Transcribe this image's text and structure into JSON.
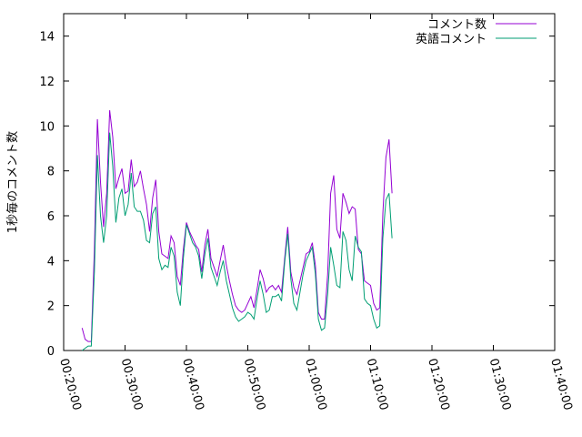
{
  "chart_data": {
    "type": "line",
    "title": "",
    "xlabel": "",
    "ylabel": "1秒毎のコメント数",
    "ylim": [
      0,
      15
    ],
    "yticks": [
      0,
      2,
      4,
      6,
      8,
      10,
      12,
      14
    ],
    "xlim": [
      1200,
      6000
    ],
    "xticks": [
      {
        "t": 1200,
        "label": "00:20:00"
      },
      {
        "t": 1800,
        "label": "00:30:00"
      },
      {
        "t": 2400,
        "label": "00:40:00"
      },
      {
        "t": 3000,
        "label": "00:50:00"
      },
      {
        "t": 3600,
        "label": "01:00:00"
      },
      {
        "t": 4200,
        "label": "01:10:00"
      },
      {
        "t": 4800,
        "label": "01:20:00"
      },
      {
        "t": 5400,
        "label": "01:30:00"
      },
      {
        "t": 6000,
        "label": "01:40:00"
      }
    ],
    "legend_position": "top-right",
    "grid": false,
    "series": [
      {
        "name": "コメント数",
        "color": "#9400d3",
        "points": [
          [
            1380,
            1.0
          ],
          [
            1410,
            0.5
          ],
          [
            1440,
            0.4
          ],
          [
            1470,
            0.4
          ],
          [
            1500,
            4.5
          ],
          [
            1530,
            10.3
          ],
          [
            1560,
            7.5
          ],
          [
            1590,
            5.5
          ],
          [
            1620,
            7.0
          ],
          [
            1650,
            10.7
          ],
          [
            1680,
            9.5
          ],
          [
            1710,
            7.2
          ],
          [
            1740,
            7.7
          ],
          [
            1770,
            8.1
          ],
          [
            1800,
            7.0
          ],
          [
            1830,
            7.1
          ],
          [
            1860,
            8.5
          ],
          [
            1890,
            7.3
          ],
          [
            1920,
            7.5
          ],
          [
            1950,
            8.0
          ],
          [
            1980,
            7.2
          ],
          [
            2010,
            6.5
          ],
          [
            2040,
            5.3
          ],
          [
            2070,
            6.8
          ],
          [
            2100,
            7.6
          ],
          [
            2130,
            5.3
          ],
          [
            2160,
            4.3
          ],
          [
            2190,
            4.2
          ],
          [
            2220,
            4.1
          ],
          [
            2250,
            5.1
          ],
          [
            2280,
            4.8
          ],
          [
            2310,
            3.3
          ],
          [
            2340,
            2.9
          ],
          [
            2370,
            4.5
          ],
          [
            2400,
            5.7
          ],
          [
            2430,
            5.3
          ],
          [
            2460,
            5.0
          ],
          [
            2490,
            4.7
          ],
          [
            2520,
            4.5
          ],
          [
            2550,
            3.5
          ],
          [
            2580,
            4.7
          ],
          [
            2610,
            5.4
          ],
          [
            2640,
            4.1
          ],
          [
            2670,
            3.7
          ],
          [
            2700,
            3.3
          ],
          [
            2730,
            4.0
          ],
          [
            2760,
            4.7
          ],
          [
            2790,
            3.8
          ],
          [
            2820,
            3.1
          ],
          [
            2850,
            2.5
          ],
          [
            2880,
            2.0
          ],
          [
            2910,
            1.8
          ],
          [
            2940,
            1.7
          ],
          [
            2970,
            1.8
          ],
          [
            3000,
            2.1
          ],
          [
            3030,
            2.4
          ],
          [
            3060,
            1.9
          ],
          [
            3090,
            2.7
          ],
          [
            3120,
            3.6
          ],
          [
            3150,
            3.2
          ],
          [
            3180,
            2.6
          ],
          [
            3210,
            2.8
          ],
          [
            3240,
            2.9
          ],
          [
            3270,
            2.7
          ],
          [
            3300,
            2.9
          ],
          [
            3330,
            2.6
          ],
          [
            3360,
            4.1
          ],
          [
            3390,
            5.5
          ],
          [
            3420,
            3.5
          ],
          [
            3450,
            2.8
          ],
          [
            3480,
            2.5
          ],
          [
            3510,
            3.1
          ],
          [
            3540,
            3.7
          ],
          [
            3570,
            4.3
          ],
          [
            3600,
            4.4
          ],
          [
            3630,
            4.8
          ],
          [
            3660,
            3.8
          ],
          [
            3690,
            1.7
          ],
          [
            3720,
            1.4
          ],
          [
            3750,
            1.4
          ],
          [
            3780,
            3.4
          ],
          [
            3810,
            7.0
          ],
          [
            3840,
            7.8
          ],
          [
            3870,
            5.4
          ],
          [
            3900,
            5.0
          ],
          [
            3930,
            7.0
          ],
          [
            3960,
            6.6
          ],
          [
            3990,
            6.1
          ],
          [
            4020,
            6.4
          ],
          [
            4050,
            6.3
          ],
          [
            4080,
            4.5
          ],
          [
            4110,
            4.3
          ],
          [
            4140,
            3.1
          ],
          [
            4170,
            3.0
          ],
          [
            4200,
            2.9
          ],
          [
            4230,
            2.1
          ],
          [
            4260,
            1.8
          ],
          [
            4290,
            1.9
          ],
          [
            4320,
            6.1
          ],
          [
            4350,
            8.6
          ],
          [
            4380,
            9.4
          ],
          [
            4410,
            7.0
          ]
        ]
      },
      {
        "name": "英語コメント",
        "color": "#009e73",
        "points": [
          [
            1380,
            0.0
          ],
          [
            1410,
            0.1
          ],
          [
            1440,
            0.2
          ],
          [
            1470,
            0.2
          ],
          [
            1500,
            3.5
          ],
          [
            1530,
            8.7
          ],
          [
            1560,
            6.0
          ],
          [
            1590,
            4.8
          ],
          [
            1620,
            6.0
          ],
          [
            1650,
            9.7
          ],
          [
            1680,
            8.2
          ],
          [
            1710,
            5.7
          ],
          [
            1740,
            6.8
          ],
          [
            1770,
            7.2
          ],
          [
            1800,
            6.0
          ],
          [
            1830,
            6.5
          ],
          [
            1860,
            7.9
          ],
          [
            1890,
            6.4
          ],
          [
            1920,
            6.2
          ],
          [
            1950,
            6.2
          ],
          [
            1980,
            5.8
          ],
          [
            2010,
            4.9
          ],
          [
            2040,
            4.8
          ],
          [
            2070,
            6.1
          ],
          [
            2100,
            6.4
          ],
          [
            2130,
            4.1
          ],
          [
            2160,
            3.6
          ],
          [
            2190,
            3.8
          ],
          [
            2220,
            3.7
          ],
          [
            2250,
            4.6
          ],
          [
            2280,
            4.2
          ],
          [
            2310,
            2.6
          ],
          [
            2340,
            2.0
          ],
          [
            2370,
            4.1
          ],
          [
            2400,
            5.6
          ],
          [
            2430,
            5.2
          ],
          [
            2460,
            4.8
          ],
          [
            2490,
            4.6
          ],
          [
            2520,
            4.2
          ],
          [
            2550,
            3.2
          ],
          [
            2580,
            4.3
          ],
          [
            2610,
            5.0
          ],
          [
            2640,
            3.7
          ],
          [
            2670,
            3.3
          ],
          [
            2700,
            2.9
          ],
          [
            2730,
            3.5
          ],
          [
            2760,
            4.0
          ],
          [
            2790,
            3.1
          ],
          [
            2820,
            2.5
          ],
          [
            2850,
            1.9
          ],
          [
            2880,
            1.5
          ],
          [
            2910,
            1.3
          ],
          [
            2940,
            1.4
          ],
          [
            2970,
            1.5
          ],
          [
            3000,
            1.7
          ],
          [
            3030,
            1.6
          ],
          [
            3060,
            1.4
          ],
          [
            3090,
            2.3
          ],
          [
            3120,
            3.1
          ],
          [
            3150,
            2.5
          ],
          [
            3180,
            1.7
          ],
          [
            3210,
            1.8
          ],
          [
            3240,
            2.4
          ],
          [
            3270,
            2.4
          ],
          [
            3300,
            2.5
          ],
          [
            3330,
            2.2
          ],
          [
            3360,
            3.9
          ],
          [
            3390,
            5.2
          ],
          [
            3420,
            3.2
          ],
          [
            3450,
            2.1
          ],
          [
            3480,
            1.8
          ],
          [
            3510,
            2.6
          ],
          [
            3540,
            3.4
          ],
          [
            3570,
            4.0
          ],
          [
            3600,
            4.3
          ],
          [
            3630,
            4.6
          ],
          [
            3660,
            3.4
          ],
          [
            3690,
            1.4
          ],
          [
            3720,
            0.9
          ],
          [
            3750,
            1.0
          ],
          [
            3780,
            2.5
          ],
          [
            3810,
            4.6
          ],
          [
            3840,
            3.8
          ],
          [
            3870,
            2.9
          ],
          [
            3900,
            2.8
          ],
          [
            3930,
            5.3
          ],
          [
            3960,
            4.9
          ],
          [
            3990,
            3.6
          ],
          [
            4020,
            3.1
          ],
          [
            4050,
            5.1
          ],
          [
            4080,
            4.6
          ],
          [
            4110,
            4.4
          ],
          [
            4140,
            2.3
          ],
          [
            4170,
            2.1
          ],
          [
            4200,
            2.0
          ],
          [
            4230,
            1.4
          ],
          [
            4260,
            1.0
          ],
          [
            4290,
            1.1
          ],
          [
            4320,
            5.0
          ],
          [
            4350,
            6.7
          ],
          [
            4380,
            7.0
          ],
          [
            4410,
            5.0
          ]
        ]
      }
    ]
  }
}
